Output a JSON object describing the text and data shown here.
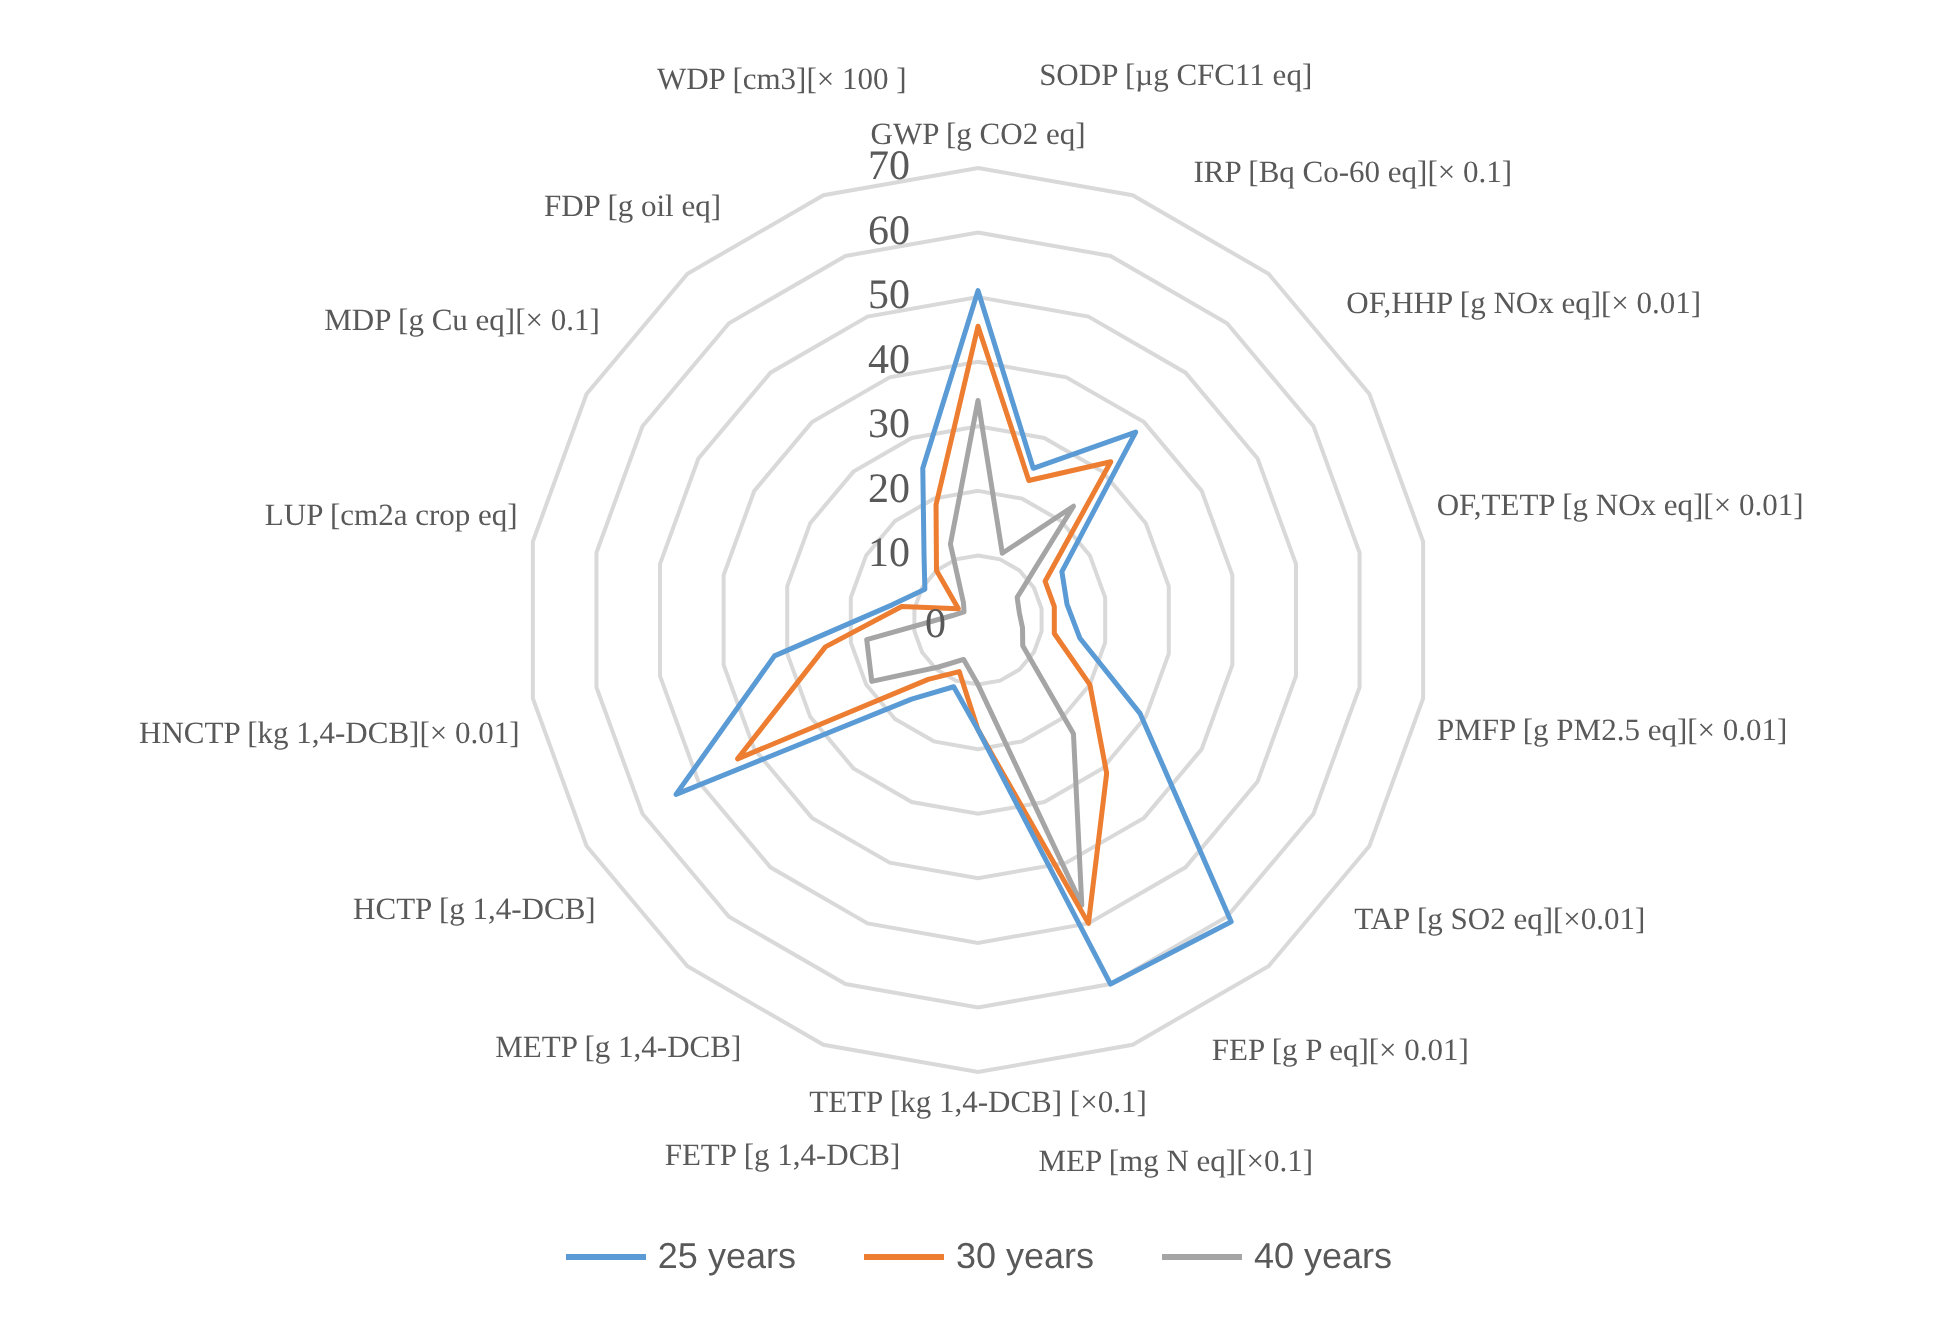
{
  "chart_data": {
    "type": "radar",
    "categories": [
      "GWP [g CO2 eq]",
      "SODP [µg CFC11 eq]",
      "IRP [Bq Co-60 eq][× 0.1]",
      "OF,HHP [g NOx eq][× 0.01]",
      "OF,TETP [g NOx eq][× 0.01]",
      "PMFP [g PM2.5 eq][× 0.01]",
      "TAP [g SO2 eq][×0.01]",
      "FEP [g P eq][× 0.01]",
      "MEP [mg N eq][×0.1]",
      "TETP [kg 1,4-DCB] [×0.1]",
      "FETP [g 1,4-DCB]",
      "METP [g 1,4-DCB]",
      "HCTP [g 1,4-DCB]",
      "HNCTP [kg 1,4-DCB][× 0.01]",
      "LUP [cm2a crop eq]",
      "MDP [g Cu eq][× 0.1]",
      "FDP [g oil eq]",
      "WDP [cm3][× 100 ]"
    ],
    "series": [
      {
        "name": "25 years",
        "color": "#5b9bd5",
        "values": [
          51,
          25,
          38,
          15,
          14,
          16,
          29,
          61,
          60,
          17,
          11,
          16,
          54,
          32,
          13.5,
          9.5,
          13,
          25
        ]
      },
      {
        "name": "30 years",
        "color": "#ed7d31",
        "values": [
          45.5,
          23,
          32,
          12,
          12,
          12,
          20,
          31,
          50,
          17,
          8.5,
          12,
          43,
          24,
          12,
          3.5,
          10,
          19
        ]
      },
      {
        "name": "40 years",
        "color": "#a5a5a5",
        "values": [
          34,
          11,
          23,
          7,
          6.5,
          7,
          8,
          23,
          47,
          10,
          6.5,
          9.5,
          19,
          17.5,
          4,
          2.5,
          3.5,
          12.5
        ]
      }
    ],
    "ylim": [
      0,
      70
    ],
    "yticks": [
      0,
      10,
      20,
      30,
      40,
      50,
      60,
      70
    ],
    "grid": true,
    "legend": "bottom",
    "marker": "none",
    "line_style": "solid"
  }
}
